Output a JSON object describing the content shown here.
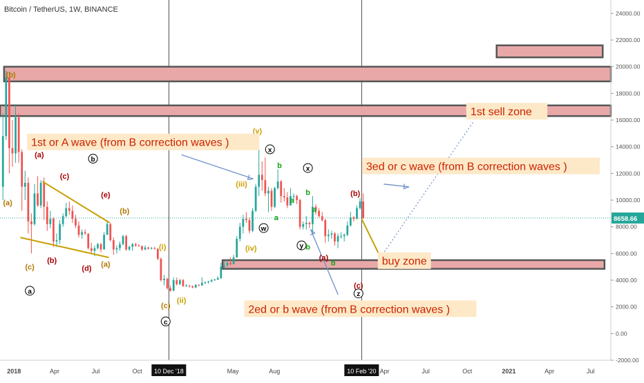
{
  "header": {
    "title": "Bitcoin / TetherUS, 1W, BINANCE"
  },
  "colors": {
    "up": "#26a69a",
    "down": "#ef5350",
    "zone_fill": "#e8a8a8",
    "zone_stroke": "#555555",
    "note_bg": "#fde9c8",
    "note_text": "#cc2200",
    "trend": "#c8a000",
    "arrow": "#6f8fc8",
    "price_tag": "#26a69a"
  },
  "chart_data": {
    "type": "candlestick",
    "title": "Bitcoin / TetherUS, 1W, BINANCE",
    "ylim": [
      -2000,
      25000
    ],
    "y_ticks": [
      -2000,
      0,
      2000,
      4000,
      6000,
      8000,
      10000,
      12000,
      14000,
      16000,
      18000,
      20000,
      22000,
      24000
    ],
    "y_tick_labels": [
      "-2000.00",
      "0.00",
      "2000.00",
      "4000.00",
      "6000.00",
      "8000.00",
      "10000.00",
      "12000.00",
      "14000.00",
      "16000.00",
      "18000.00",
      "20000.00",
      "22000.00",
      "24000.00"
    ],
    "x_ticks": [
      {
        "date": "2018-01-01",
        "label": "2018"
      },
      {
        "date": "2018-04-01",
        "label": "Apr"
      },
      {
        "date": "2018-07-01",
        "label": "Jul"
      },
      {
        "date": "2018-10-01",
        "label": "Oct"
      },
      {
        "date": "2019-05-01",
        "label": "May"
      },
      {
        "date": "2019-08-01",
        "label": "Aug"
      },
      {
        "date": "2020-04-01",
        "label": "Apr"
      },
      {
        "date": "2020-07-01",
        "label": "Jul"
      },
      {
        "date": "2020-10-01",
        "label": "Oct"
      },
      {
        "date": "2021-01-01",
        "label": "2021"
      },
      {
        "date": "2021-04-01",
        "label": "Apr"
      },
      {
        "date": "2021-07-01",
        "label": "Jul"
      }
    ],
    "x_range": [
      "2017-12-01",
      "2021-08-15"
    ],
    "current_price": {
      "value": 8658.66,
      "label": "8658.66"
    },
    "markers": [
      {
        "date": "2018-12-10",
        "label": "10 Dec '18"
      },
      {
        "date": "2020-02-10",
        "label": "10 Feb '20"
      }
    ],
    "zones": [
      {
        "from": "2020-12-05",
        "to": "2021-07-28",
        "low": 20700,
        "high": 21600
      },
      {
        "from": "2017-12-10",
        "to": "2021-08-15",
        "low": 18900,
        "high": 20000
      },
      {
        "from": "2017-12-01",
        "to": "2021-08-15",
        "low": 16300,
        "high": 17100
      },
      {
        "from": "2019-04-08",
        "to": "2021-08-01",
        "low": 4850,
        "high": 5500
      }
    ],
    "candles": [
      [
        "2017-12-04",
        11000,
        16500,
        10000,
        14800
      ],
      [
        "2017-12-11",
        14800,
        19700,
        14500,
        19200
      ],
      [
        "2017-12-18",
        19200,
        19200,
        12000,
        13900
      ],
      [
        "2017-12-25",
        13900,
        16000,
        12500,
        13500
      ],
      [
        "2018-01-01",
        13500,
        17200,
        12800,
        16200
      ],
      [
        "2018-01-08",
        16200,
        16500,
        12800,
        13600
      ],
      [
        "2018-01-15",
        13600,
        13800,
        9200,
        11000
      ],
      [
        "2018-01-22",
        11000,
        12200,
        10000,
        11300
      ],
      [
        "2018-01-29",
        11300,
        11700,
        7500,
        8400
      ],
      [
        "2018-02-05",
        8400,
        9000,
        6000,
        8200
      ],
      [
        "2018-02-12",
        8200,
        11200,
        8100,
        10500
      ],
      [
        "2018-02-19",
        10500,
        11800,
        9500,
        9600
      ],
      [
        "2018-02-26",
        9600,
        11500,
        9400,
        11300
      ],
      [
        "2018-03-05",
        11300,
        11700,
        8500,
        9500
      ],
      [
        "2018-03-12",
        9500,
        9900,
        7700,
        8200
      ],
      [
        "2018-03-19",
        8200,
        9200,
        7900,
        8600
      ],
      [
        "2018-03-26",
        8600,
        8700,
        6500,
        6900
      ],
      [
        "2018-04-02",
        6900,
        7500,
        6500,
        7000
      ],
      [
        "2018-04-09",
        7000,
        8500,
        6700,
        8200
      ],
      [
        "2018-04-16",
        8200,
        9000,
        8000,
        8800
      ],
      [
        "2018-04-23",
        8800,
        9800,
        8700,
        9400
      ],
      [
        "2018-04-30",
        9400,
        9900,
        8900,
        9200
      ],
      [
        "2018-05-07",
        9200,
        9600,
        8300,
        8600
      ],
      [
        "2018-05-14",
        8600,
        8900,
        7900,
        8100
      ],
      [
        "2018-05-21",
        8100,
        8400,
        7200,
        7400
      ],
      [
        "2018-05-28",
        7400,
        7800,
        7100,
        7600
      ],
      [
        "2018-06-04",
        7600,
        7800,
        7400,
        7500
      ],
      [
        "2018-06-11",
        7500,
        7500,
        6300,
        6400
      ],
      [
        "2018-06-18",
        6400,
        6800,
        6000,
        6200
      ],
      [
        "2018-06-25",
        6200,
        6600,
        5800,
        6400
      ],
      [
        "2018-07-02",
        6400,
        6800,
        6300,
        6700
      ],
      [
        "2018-07-09",
        6700,
        6800,
        6100,
        6300
      ],
      [
        "2018-07-16",
        6300,
        7600,
        6300,
        7400
      ],
      [
        "2018-07-23",
        7400,
        8500,
        7400,
        8200
      ],
      [
        "2018-07-30",
        8200,
        8300,
        6900,
        7000
      ],
      [
        "2018-08-06",
        7000,
        7200,
        5900,
        6300
      ],
      [
        "2018-08-13",
        6300,
        6600,
        6000,
        6400
      ],
      [
        "2018-08-20",
        6400,
        6900,
        6200,
        6700
      ],
      [
        "2018-08-27",
        6700,
        7400,
        6600,
        7300
      ],
      [
        "2018-09-03",
        7300,
        7400,
        6200,
        6300
      ],
      [
        "2018-09-10",
        6300,
        6600,
        6200,
        6500
      ],
      [
        "2018-09-17",
        6500,
        6800,
        6200,
        6700
      ],
      [
        "2018-09-24",
        6700,
        6800,
        6500,
        6600
      ],
      [
        "2018-10-01",
        6600,
        6700,
        6500,
        6550
      ],
      [
        "2018-10-08",
        6550,
        6600,
        6200,
        6300
      ],
      [
        "2018-10-15",
        6300,
        6600,
        6250,
        6450
      ],
      [
        "2018-10-22",
        6450,
        6500,
        6300,
        6350
      ],
      [
        "2018-10-29",
        6350,
        6500,
        6300,
        6400
      ],
      [
        "2018-11-05",
        6400,
        6500,
        6300,
        6350
      ],
      [
        "2018-11-12",
        6350,
        6400,
        5500,
        5600
      ],
      [
        "2018-11-19",
        5600,
        5700,
        3900,
        4000
      ],
      [
        "2018-11-26",
        4000,
        4400,
        3600,
        4100
      ],
      [
        "2018-12-03",
        4100,
        4200,
        3300,
        3400
      ],
      [
        "2018-12-10",
        3400,
        3600,
        3150,
        3200
      ],
      [
        "2018-12-17",
        3200,
        4200,
        3200,
        4000
      ],
      [
        "2018-12-24",
        4000,
        4200,
        3600,
        3700
      ],
      [
        "2018-12-31",
        3700,
        4100,
        3650,
        4000
      ],
      [
        "2019-01-07",
        4000,
        4100,
        3500,
        3550
      ],
      [
        "2019-01-14",
        3550,
        3700,
        3500,
        3600
      ],
      [
        "2019-01-21",
        3600,
        3650,
        3450,
        3550
      ],
      [
        "2019-01-28",
        3550,
        3600,
        3400,
        3450
      ],
      [
        "2019-02-04",
        3450,
        3700,
        3400,
        3650
      ],
      [
        "2019-02-11",
        3650,
        3700,
        3550,
        3600
      ],
      [
        "2019-02-18",
        3600,
        4200,
        3600,
        3800
      ],
      [
        "2019-02-25",
        3800,
        3900,
        3700,
        3850
      ],
      [
        "2019-03-04",
        3850,
        3950,
        3750,
        3900
      ],
      [
        "2019-03-11",
        3900,
        4100,
        3850,
        4000
      ],
      [
        "2019-03-18",
        4000,
        4100,
        3950,
        4050
      ],
      [
        "2019-03-25",
        4050,
        4300,
        4000,
        4150
      ],
      [
        "2019-04-01",
        4150,
        5300,
        4100,
        5000
      ],
      [
        "2019-04-08",
        5000,
        5400,
        4900,
        5100
      ],
      [
        "2019-04-15",
        5100,
        5500,
        5000,
        5300
      ],
      [
        "2019-04-22",
        5300,
        5700,
        5100,
        5200
      ],
      [
        "2019-04-29",
        5200,
        5900,
        5200,
        5700
      ],
      [
        "2019-05-06",
        5700,
        7300,
        5700,
        7100
      ],
      [
        "2019-05-13",
        7100,
        8300,
        6900,
        8000
      ],
      [
        "2019-05-20",
        8000,
        8900,
        7500,
        8600
      ],
      [
        "2019-05-27",
        8600,
        9100,
        8300,
        8500
      ],
      [
        "2019-06-03",
        8500,
        8700,
        7500,
        7700
      ],
      [
        "2019-06-10",
        7700,
        9400,
        7600,
        9200
      ],
      [
        "2019-06-17",
        9200,
        11200,
        9100,
        11000
      ],
      [
        "2019-06-24",
        11000,
        13800,
        10300,
        11900
      ],
      [
        "2019-07-01",
        11900,
        12900,
        10700,
        11500
      ],
      [
        "2019-07-08",
        11500,
        13200,
        10300,
        10500
      ],
      [
        "2019-07-15",
        10500,
        11000,
        9100,
        10700
      ],
      [
        "2019-07-22",
        10700,
        10900,
        9200,
        9500
      ],
      [
        "2019-07-29",
        9500,
        11000,
        9400,
        10900
      ],
      [
        "2019-08-05",
        10900,
        12300,
        10800,
        11400
      ],
      [
        "2019-08-12",
        11400,
        11500,
        9800,
        10300
      ],
      [
        "2019-08-19",
        10300,
        10900,
        9900,
        10200
      ],
      [
        "2019-08-26",
        10200,
        10600,
        9400,
        9600
      ],
      [
        "2019-09-02",
        9600,
        10900,
        9600,
        10300
      ],
      [
        "2019-09-09",
        10300,
        10500,
        9900,
        10300
      ],
      [
        "2019-09-16",
        10300,
        10400,
        9700,
        10000
      ],
      [
        "2019-09-23",
        10000,
        10100,
        7800,
        8000
      ],
      [
        "2019-09-30",
        8000,
        8400,
        7800,
        8200
      ],
      [
        "2019-10-07",
        8200,
        8800,
        7800,
        8300
      ],
      [
        "2019-10-14",
        8300,
        8400,
        7900,
        8200
      ],
      [
        "2019-10-21",
        8200,
        10300,
        7400,
        9500
      ],
      [
        "2019-10-28",
        9500,
        9700,
        8900,
        9200
      ],
      [
        "2019-11-04",
        9200,
        9400,
        8700,
        8800
      ],
      [
        "2019-11-11",
        8800,
        9100,
        8400,
        8500
      ],
      [
        "2019-11-18",
        8500,
        8600,
        6800,
        7300
      ],
      [
        "2019-11-25",
        7300,
        7800,
        6900,
        7400
      ],
      [
        "2019-12-02",
        7400,
        7700,
        7100,
        7500
      ],
      [
        "2019-12-09",
        7500,
        7600,
        6600,
        6900
      ],
      [
        "2019-12-16",
        6900,
        7500,
        6400,
        7300
      ],
      [
        "2019-12-23",
        7300,
        7600,
        7100,
        7300
      ],
      [
        "2019-12-30",
        7300,
        7500,
        6900,
        7400
      ],
      [
        "2020-01-06",
        7400,
        8400,
        7300,
        8100
      ],
      [
        "2020-01-13",
        8100,
        9100,
        8000,
        8700
      ],
      [
        "2020-01-20",
        8700,
        8800,
        8400,
        8600
      ],
      [
        "2020-01-27",
        8600,
        9600,
        8550,
        9400
      ],
      [
        "2020-02-03",
        9400,
        10150,
        9300,
        9900
      ],
      [
        "2020-02-10",
        9900,
        10500,
        8600,
        8650
      ]
    ],
    "waves": [
      {
        "label": "(b)",
        "date": "2017-12-25",
        "price": 19200,
        "color": "#b07800",
        "circle": false
      },
      {
        "label": "(a)",
        "date": "2017-12-18",
        "price": 9600,
        "color": "#b07800",
        "circle": false
      },
      {
        "label": "(c)",
        "date": "2018-02-05",
        "price": 4800,
        "color": "#b07800",
        "circle": false
      },
      {
        "label": "a",
        "date": "2018-02-05",
        "price": 3000,
        "color": "#000000",
        "circle": true
      },
      {
        "label": "(a)",
        "date": "2018-02-26",
        "price": 13200,
        "color": "#a80000",
        "circle": false
      },
      {
        "label": "(b)",
        "date": "2018-03-26",
        "price": 5300,
        "color": "#a80000",
        "circle": false
      },
      {
        "label": "(c)",
        "date": "2018-04-23",
        "price": 11600,
        "color": "#a80000",
        "circle": false
      },
      {
        "label": "(d)",
        "date": "2018-06-11",
        "price": 4700,
        "color": "#a80000",
        "circle": false
      },
      {
        "label": "b",
        "date": "2018-06-25",
        "price": 12900,
        "color": "#000000",
        "circle": true
      },
      {
        "label": "(e)",
        "date": "2018-07-23",
        "price": 10200,
        "color": "#a80000",
        "circle": false
      },
      {
        "label": "(a)",
        "date": "2018-07-23",
        "price": 5000,
        "color": "#b07800",
        "circle": false
      },
      {
        "label": "(b)",
        "date": "2018-09-03",
        "price": 9000,
        "color": "#b07800",
        "circle": false
      },
      {
        "label": "(i)",
        "date": "2018-11-26",
        "price": 6300,
        "color": "#c8a000",
        "circle": false
      },
      {
        "label": "(c)",
        "date": "2018-12-03",
        "price": 1900,
        "color": "#b07800",
        "circle": false
      },
      {
        "label": "c",
        "date": "2018-12-03",
        "price": 700,
        "color": "#000000",
        "circle": true
      },
      {
        "label": "(ii)",
        "date": "2019-01-07",
        "price": 2300,
        "color": "#c8a000",
        "circle": false
      },
      {
        "label": "(iii)",
        "date": "2019-05-20",
        "price": 11000,
        "color": "#c8a000",
        "circle": false
      },
      {
        "label": "(iv)",
        "date": "2019-06-10",
        "price": 6200,
        "color": "#c8a000",
        "circle": false
      },
      {
        "label": "(v)",
        "date": "2019-06-24",
        "price": 15000,
        "color": "#c8a000",
        "circle": false
      },
      {
        "label": "x",
        "date": "2019-07-22",
        "price": 13600,
        "color": "#000000",
        "circle": true
      },
      {
        "label": "w",
        "date": "2019-07-08",
        "price": 7700,
        "color": "#000000",
        "circle": true
      },
      {
        "label": "b",
        "date": "2019-08-12",
        "price": 12400,
        "color": "#13a013",
        "circle": false
      },
      {
        "label": "a",
        "date": "2019-09-09",
        "price": 9800,
        "color": "#13a013",
        "circle": false
      },
      {
        "label": "a",
        "date": "2019-08-05",
        "price": 8500,
        "color": "#13a013",
        "circle": false
      },
      {
        "label": "x",
        "date": "2019-10-14",
        "price": 12200,
        "color": "#000000",
        "circle": true
      },
      {
        "label": "b",
        "date": "2019-10-14",
        "price": 10400,
        "color": "#13a013",
        "circle": false
      },
      {
        "label": "a",
        "date": "2019-10-28",
        "price": 9100,
        "color": "#13a013",
        "circle": false
      },
      {
        "label": "y",
        "date": "2019-09-30",
        "price": 6400,
        "color": "#000000",
        "circle": true
      },
      {
        "label": "b",
        "date": "2019-10-14",
        "price": 6300,
        "color": "#13a013",
        "circle": false
      },
      {
        "label": "(a)",
        "date": "2019-11-18",
        "price": 5500,
        "color": "#a80000",
        "circle": false
      },
      {
        "label": "b",
        "date": "2019-12-09",
        "price": 5100,
        "color": "#13a013",
        "circle": false
      },
      {
        "label": "(b)",
        "date": "2020-01-27",
        "price": 10300,
        "color": "#a80000",
        "circle": false
      },
      {
        "label": "(c)",
        "date": "2020-02-03",
        "price": 3400,
        "color": "#a80000",
        "circle": false
      },
      {
        "label": "z",
        "date": "2020-02-03",
        "price": 2800,
        "color": "#000000",
        "circle": true
      }
    ],
    "annotations": [
      {
        "text": "1st or A wave (from B correction waves )",
        "date": "2018-02-05",
        "price": 14000
      },
      {
        "text": "3ed  or c wave (from B correction waves )",
        "date": "2020-02-17",
        "price": 12200
      },
      {
        "text": "2ed or b wave (from B correction waves )",
        "date": "2019-06-01",
        "price": 1500
      },
      {
        "text": "1st sell zone",
        "date": "2020-10-05",
        "price": 16300
      },
      {
        "text": "buy zone",
        "date": "2020-03-23",
        "price": 5100
      }
    ]
  }
}
